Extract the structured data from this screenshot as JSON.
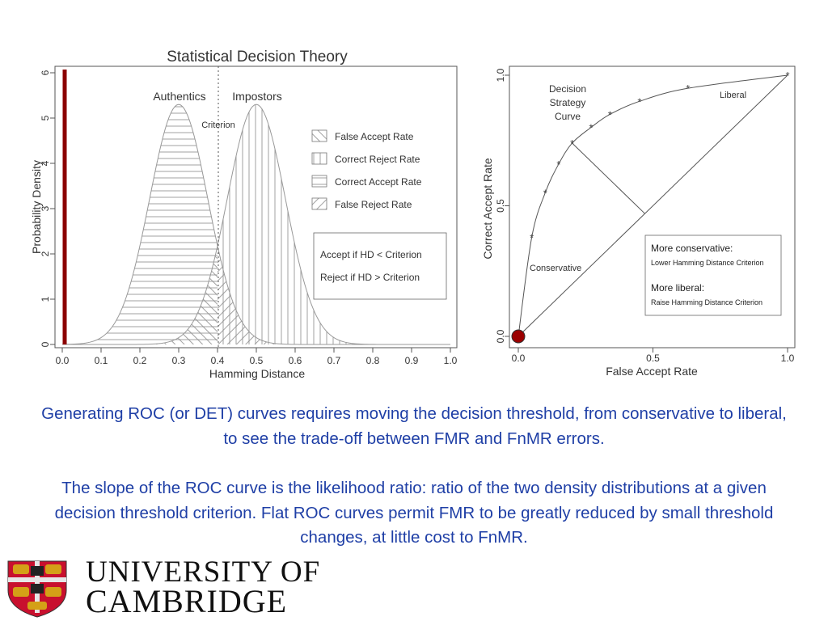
{
  "chart_data": [
    {
      "type": "area",
      "title": "Statistical Decision Theory",
      "xlabel": "Hamming Distance",
      "ylabel": "Probability Density",
      "xlim": [
        0.0,
        1.0
      ],
      "ylim": [
        0,
        6
      ],
      "xticks": [
        "0.0",
        "0.1",
        "0.2",
        "0.3",
        "0.4",
        "0.5",
        "0.6",
        "0.7",
        "0.8",
        "0.9",
        "1.0"
      ],
      "yticks": [
        "0",
        "1",
        "2",
        "3",
        "4",
        "5",
        "6"
      ],
      "series": [
        {
          "name": "Authentics",
          "distribution": "normal",
          "mean": 0.3,
          "peak": 5.3
        },
        {
          "name": "Impostors",
          "distribution": "normal",
          "mean": 0.5,
          "peak": 5.3
        }
      ],
      "criterion": {
        "label": "Criterion",
        "x": 0.4
      },
      "legend": [
        "False Accept Rate",
        "Correct Reject Rate",
        "Correct Accept Rate",
        "False Reject Rate"
      ],
      "legend_position": "right",
      "rules": [
        "Accept if HD < Criterion",
        "Reject if HD > Criterion"
      ],
      "marker_color": "#8b0000"
    },
    {
      "type": "line",
      "xlabel": "False Accept Rate",
      "ylabel": "Correct Accept Rate",
      "xlim": [
        0.0,
        1.0
      ],
      "ylim": [
        0.0,
        1.0
      ],
      "xticks": [
        "0.0",
        "0.5",
        "1.0"
      ],
      "yticks": [
        "0.0",
        "0.5",
        "1.0"
      ],
      "points": [
        {
          "x": 0.0,
          "y": 0.0
        },
        {
          "x": 0.05,
          "y": 0.38
        },
        {
          "x": 0.1,
          "y": 0.55
        },
        {
          "x": 0.15,
          "y": 0.66
        },
        {
          "x": 0.2,
          "y": 0.74
        },
        {
          "x": 0.27,
          "y": 0.8
        },
        {
          "x": 0.34,
          "y": 0.85
        },
        {
          "x": 0.45,
          "y": 0.9
        },
        {
          "x": 0.63,
          "y": 0.95
        },
        {
          "x": 1.0,
          "y": 1.0
        }
      ],
      "diagonal": true,
      "annotations": {
        "curve_label": [
          "Decision",
          "Strategy",
          "Curve"
        ],
        "liberal": "Liberal",
        "conservative": "Conservative",
        "box_title_1": "More conservative:",
        "box_sub_1": "Lower Hamming Distance Criterion",
        "box_title_2": "More liberal:",
        "box_sub_2": "Raise Hamming Distance Criterion"
      },
      "origin_marker_color": "#9b0000"
    }
  ],
  "caption": {
    "paragraph1": "Generating ROC (or DET) curves requires moving the decision threshold, from conservative to liberal, to see the trade-off between FMR and FnMR errors.",
    "paragraph2": "The slope of the ROC curve is the likelihood ratio:  ratio of the two density distributions at a given decision threshold criterion.  Flat ROC curves permit FMR to be greatly reduced by small threshold changes, at little cost to FnMR."
  },
  "logo": {
    "line1": "UNIVERSITY OF",
    "line2": "CAMBRIDGE"
  }
}
